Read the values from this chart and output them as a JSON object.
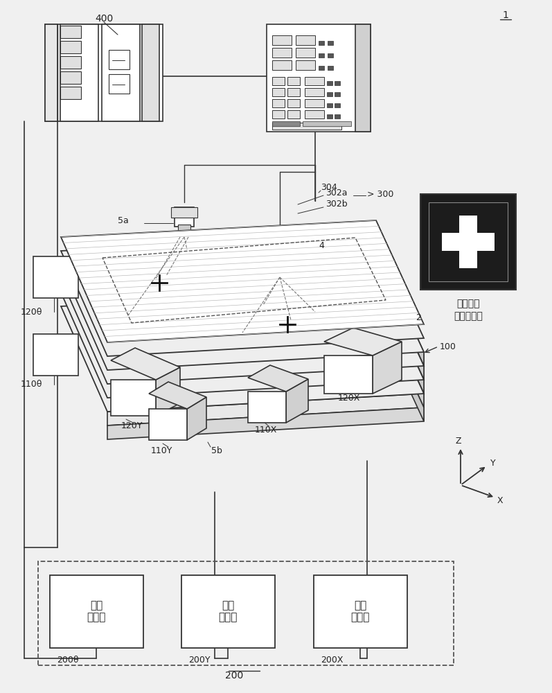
{
  "bg_color": "#f0f0f0",
  "fig_width": 7.97,
  "fig_height": 10.0,
  "lc": "#333333",
  "lc2": "#555555",
  "fc_white": "#ffffff",
  "fc_light": "#f5f5f5",
  "fc_gray": "#d8d8d8",
  "fc_dark": "#1a1a1a",
  "label_1": "1",
  "label_400": "400",
  "label_304": "304",
  "label_302a": "302a",
  "label_302b": "302b",
  "label_300": "300",
  "label_5a": "5a",
  "label_4": "4",
  "label_2": "2",
  "label_100": "100",
  "label_120theta": "120θ",
  "label_110theta": "110θ",
  "label_120Y": "120Y",
  "label_110Y": "110Y",
  "label_5b": "5b",
  "label_110X": "110X",
  "label_120X": "120X",
  "label_servo": "伺服\n驱动器",
  "label_200theta": "200θ",
  "label_200Y": "200Y",
  "label_200X": "200X",
  "label_200": "200",
  "label_mark_line1": "定位标记",
  "label_mark_line2": "（工件上）"
}
